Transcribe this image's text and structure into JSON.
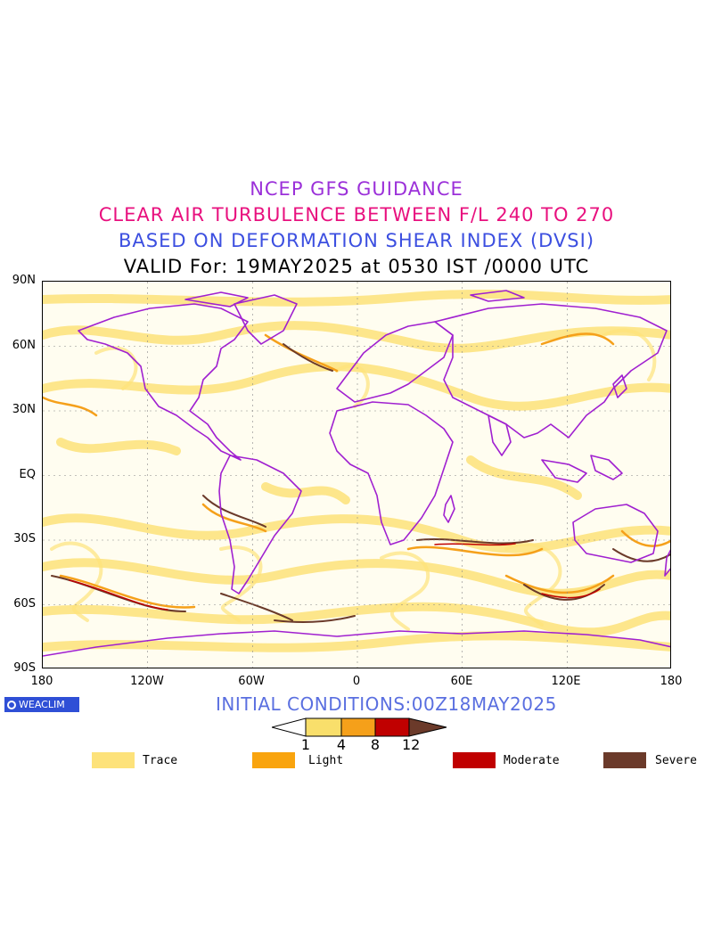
{
  "titles": {
    "line1": "NCEP GFS GUIDANCE",
    "line2": "CLEAR AIR TURBULENCE BETWEEN F/L 240 TO 270",
    "line3": "BASED ON DEFORMATION SHEAR INDEX (DVSI)",
    "line4": "VALID For: 19MAY2025 at 0530 IST /0000 UTC"
  },
  "axes": {
    "lat_labels": [
      "90N",
      "60N",
      "30N",
      "EQ",
      "30S",
      "60S",
      "90S"
    ],
    "lon_labels": [
      "180",
      "120W",
      "60W",
      "0",
      "60E",
      "120E",
      "180"
    ]
  },
  "brand": "WEACLIM",
  "initial_conditions": "INITIAL CONDITIONS:00Z18MAY2025",
  "colorbar": {
    "ticks": [
      "1",
      "4",
      "8",
      "12"
    ],
    "colors": [
      "#ffffff",
      "#f9df6b",
      "#f5a01a",
      "#c00000",
      "#6b3a2a"
    ]
  },
  "legend": [
    {
      "label": "Trace",
      "color": "#fde27a"
    },
    {
      "label": "Light",
      "color": "#f9a40e"
    },
    {
      "label": "Moderate",
      "color": "#c00000"
    },
    {
      "label": "Severe",
      "color": "#6b3a2a"
    }
  ],
  "colors": {
    "coastline": "#a020d0",
    "trace": "#fde27a",
    "light": "#f5a01a",
    "moderate": "#c00000",
    "severe": "#6b3a2a"
  }
}
